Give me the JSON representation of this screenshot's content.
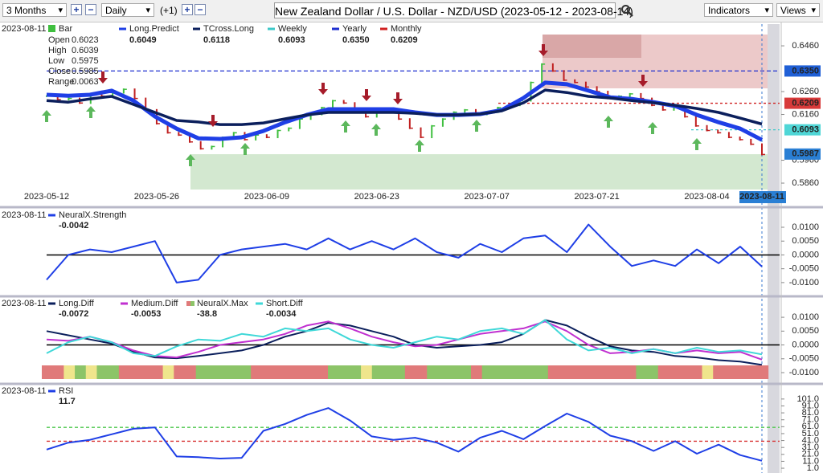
{
  "toolbar": {
    "range": "3 Months",
    "interval": "Daily",
    "offset": "(+1)",
    "title": "New Zealand Dollar / U.S. Dollar - NZD/USD (2023-05-12 - 2023-08-14)",
    "indicators": "Indicators",
    "views": "Views"
  },
  "price_panel": {
    "date": "2023-08-11",
    "bar_label": "Bar",
    "ohlc": [
      {
        "name": "Open",
        "value": "0.6023"
      },
      {
        "name": "High",
        "value": "0.6039"
      },
      {
        "name": "Low",
        "value": "0.5975"
      },
      {
        "name": "Close",
        "value": "0.5985"
      },
      {
        "name": "Range",
        "value": "0.0063"
      }
    ],
    "ylim": [
      0.5832,
      0.6555
    ],
    "yticks": [
      {
        "value": 0.646,
        "label": "0.6460"
      },
      {
        "value": 0.626,
        "label": "0.6260"
      },
      {
        "value": 0.616,
        "label": "0.6160"
      },
      {
        "value": 0.596,
        "label": "0.5960"
      },
      {
        "value": 0.586,
        "label": "0.5860"
      }
    ],
    "closes": [
      0.624,
      0.6225,
      0.623,
      0.621,
      0.625,
      0.624,
      0.6255,
      0.627,
      0.623,
      0.618,
      0.612,
      0.608,
      0.607,
      0.604,
      0.601,
      0.602,
      0.606,
      0.608,
      0.605,
      0.607,
      0.606,
      0.609,
      0.61,
      0.614,
      0.616,
      0.619,
      0.622,
      0.621,
      0.618,
      0.615,
      0.618,
      0.617,
      0.614,
      0.61,
      0.606,
      0.611,
      0.614,
      0.617,
      0.618,
      0.616,
      0.617,
      0.619,
      0.62,
      0.622,
      0.63,
      0.638,
      0.635,
      0.631,
      0.63,
      0.628,
      0.626,
      0.623,
      0.624,
      0.625,
      0.623,
      0.62,
      0.618,
      0.619,
      0.615,
      0.611,
      0.609,
      0.608,
      0.606,
      0.605,
      0.603,
      0.5985
    ],
    "series": [
      {
        "name": "Long.Predict",
        "color": "#1f3fe6",
        "value_label": "0.6049",
        "values": [
          0.6246,
          0.6242,
          0.6246,
          0.6264,
          0.6221,
          0.6151,
          0.6098,
          0.6056,
          0.6053,
          0.606,
          0.6088,
          0.6126,
          0.6158,
          0.6183,
          0.6183,
          0.6183,
          0.6183,
          0.6169,
          0.6158,
          0.6158,
          0.6162,
          0.6179,
          0.6232,
          0.6299,
          0.6292,
          0.6264,
          0.6235,
          0.6228,
          0.6214,
          0.6197,
          0.6158,
          0.6126,
          0.6098,
          0.6049
        ]
      },
      {
        "name": "TCross.Long",
        "color": "#0b1f5c",
        "value_label": "0.6118",
        "values": [
          0.6221,
          0.6214,
          0.6228,
          0.6239,
          0.6204,
          0.6169,
          0.6134,
          0.6127,
          0.6116,
          0.6116,
          0.6123,
          0.6141,
          0.6158,
          0.6169,
          0.6169,
          0.6169,
          0.6169,
          0.6165,
          0.6158,
          0.6158,
          0.6162,
          0.6176,
          0.6211,
          0.6267,
          0.6256,
          0.6239,
          0.6232,
          0.6221,
          0.6211,
          0.62,
          0.6186,
          0.6169,
          0.6144,
          0.6118
        ]
      }
    ],
    "levels": [
      {
        "name": "Weekly",
        "color": "#3cc8c8",
        "value": 0.6093,
        "value_label": "0.6093"
      },
      {
        "name": "Yearly",
        "color": "#1f30d0",
        "value": 0.635,
        "value_label": "0.6350"
      },
      {
        "name": "Monthly",
        "color": "#d02020",
        "value": 0.6209,
        "value_label": "0.6209"
      }
    ],
    "price_tags": [
      {
        "value": 0.635,
        "label": "0.6350",
        "color": "#1f5fd6"
      },
      {
        "value": 0.6209,
        "label": "0.6209",
        "color": "#d83a3a"
      },
      {
        "value": 0.6093,
        "label": "0.6093",
        "color": "#4fd6d6"
      },
      {
        "value": 0.5987,
        "label": "0.5987",
        "color": "#2a7fd4"
      }
    ],
    "dates": [
      "2023-05-12",
      "2023-05-26",
      "2023-06-09",
      "2023-06-23",
      "2023-07-07",
      "2023-07-21",
      "2023-08-04",
      "2023-08-11"
    ]
  },
  "panels": [
    {
      "date": "2023-08-11",
      "ylim": [
        -0.0141,
        0.0161
      ],
      "zero_line": true,
      "yticks": [
        {
          "value": 0.01,
          "label": "0.0100"
        },
        {
          "value": 0.005,
          "label": "0.0050"
        },
        {
          "value": 0,
          "label": "0.0000"
        },
        {
          "value": -0.005,
          "label": "-0.0050"
        },
        {
          "value": -0.01,
          "label": "-0.0100"
        }
      ],
      "series": [
        {
          "name": "NeuralX.Strength",
          "color": "#1f3fe6",
          "value_label": "-0.0042",
          "values": [
            -0.009,
            0,
            0.002,
            0.001,
            0.003,
            0.005,
            -0.01,
            -0.009,
            0,
            0.002,
            0.003,
            0.004,
            0.002,
            0.006,
            0.002,
            0.005,
            0.002,
            0.006,
            0.001,
            -0.001,
            0.004,
            0.001,
            0.006,
            0.007,
            0.001,
            0.011,
            0.003,
            -0.004,
            -0.002,
            -0.004,
            0.002,
            -0.003,
            0.003,
            -0.0042
          ]
        }
      ]
    },
    {
      "date": "2023-08-11",
      "ylim": [
        -0.0129,
        0.0167
      ],
      "zero_line": true,
      "yticks": [
        {
          "value": 0.01,
          "label": "0.0100"
        },
        {
          "value": 0.005,
          "label": "0.0050"
        },
        {
          "value": 0,
          "label": "0.0000"
        },
        {
          "value": -0.005,
          "label": "-0.0050"
        },
        {
          "value": -0.01,
          "label": "-0.0100"
        }
      ],
      "series": [
        {
          "name": "Long.Diff",
          "color": "#0b1f5c",
          "value_label": "-0.0072",
          "values": [
            0.005,
            0.0035,
            0.002,
            0.0005,
            -0.0025,
            -0.0045,
            -0.0048,
            -0.004,
            -0.003,
            -0.002,
            0,
            0.003,
            0.005,
            0.008,
            0.007,
            0.005,
            0.003,
            0,
            -0.001,
            -0.0005,
            0,
            0.001,
            0.004,
            0.009,
            0.007,
            0.003,
            -0.0005,
            -0.002,
            -0.0025,
            -0.004,
            -0.0045,
            -0.0055,
            -0.006,
            -0.0072
          ]
        },
        {
          "name": "Medium.Diff",
          "color": "#c030d0",
          "value_label": "-0.0053",
          "values": [
            0.002,
            0.0015,
            0.003,
            0.001,
            -0.002,
            -0.004,
            -0.0045,
            -0.0025,
            0,
            0.001,
            0.002,
            0.004,
            0.007,
            0.0085,
            0.006,
            0.003,
            0.001,
            -0.0005,
            0,
            0.002,
            0.004,
            0.005,
            0.006,
            0.0085,
            0.005,
            0,
            -0.003,
            -0.0025,
            -0.0015,
            -0.003,
            -0.002,
            -0.003,
            -0.0025,
            -0.0053
          ]
        },
        {
          "name": "NeuralX.Max",
          "value_label": "-38.8",
          "strip_palette": {
            "r": "#e07a7a",
            "g": "#8cc468",
            "y": "#efe58c"
          },
          "strip": [
            "r",
            "r",
            "y",
            "g",
            "y",
            "g",
            "g",
            "r",
            "r",
            "r",
            "r",
            "y",
            "r",
            "r",
            "g",
            "g",
            "g",
            "g",
            "g",
            "r",
            "r",
            "r",
            "r",
            "r",
            "r",
            "r",
            "g",
            "g",
            "g",
            "y",
            "g",
            "g",
            "g",
            "r",
            "r",
            "g",
            "g",
            "g",
            "g",
            "r",
            "g",
            "g",
            "g",
            "g",
            "g",
            "g",
            "r",
            "r",
            "r",
            "r",
            "r",
            "r",
            "r",
            "r",
            "g",
            "g",
            "r",
            "r",
            "r",
            "r",
            "y",
            "r",
            "r",
            "r",
            "r",
            "r"
          ]
        },
        {
          "name": "Short.Diff",
          "color": "#40d8d8",
          "value_label": "-0.0034",
          "values": [
            -0.003,
            0.001,
            0.003,
            0.001,
            -0.003,
            -0.004,
            -0.0005,
            0.002,
            0.0015,
            0.004,
            0.003,
            0.006,
            0.005,
            0.006,
            0.002,
            0,
            -0.001,
            0.001,
            0.003,
            0.002,
            0.005,
            0.006,
            0.004,
            0.009,
            0.002,
            -0.002,
            -0.001,
            -0.003,
            -0.0015,
            -0.003,
            -0.001,
            -0.0025,
            -0.002,
            -0.0034
          ]
        }
      ]
    },
    {
      "date": "2023-08-11",
      "ylim": [
        -5.9,
        119.4
      ],
      "zero_line": false,
      "yticks": [
        {
          "value": 101,
          "label": "101.0"
        },
        {
          "value": 91,
          "label": "91.0"
        },
        {
          "value": 81,
          "label": "81.0"
        },
        {
          "value": 71,
          "label": "71.0"
        },
        {
          "value": 61,
          "label": "61.0"
        },
        {
          "value": 51,
          "label": "51.0"
        },
        {
          "value": 41,
          "label": "41.0"
        },
        {
          "value": 31,
          "label": "31.0"
        },
        {
          "value": 21,
          "label": "21.0"
        },
        {
          "value": 11,
          "label": "11.0"
        },
        {
          "value": 1,
          "label": "1.0"
        }
      ],
      "levels": [
        {
          "value": 60,
          "color": "#4cc84c"
        },
        {
          "value": 40,
          "color": "#d83030"
        }
      ],
      "series": [
        {
          "name": "RSI",
          "color": "#1f3fe6",
          "value_label": "11.7",
          "values": [
            28,
            38,
            42,
            50,
            58,
            60,
            18,
            17,
            15,
            16,
            55,
            65,
            78,
            88,
            70,
            47,
            42,
            45,
            38,
            25,
            45,
            55,
            43,
            62,
            80,
            68,
            48,
            40,
            26,
            40,
            22,
            35,
            20,
            11.7
          ]
        }
      ]
    }
  ]
}
